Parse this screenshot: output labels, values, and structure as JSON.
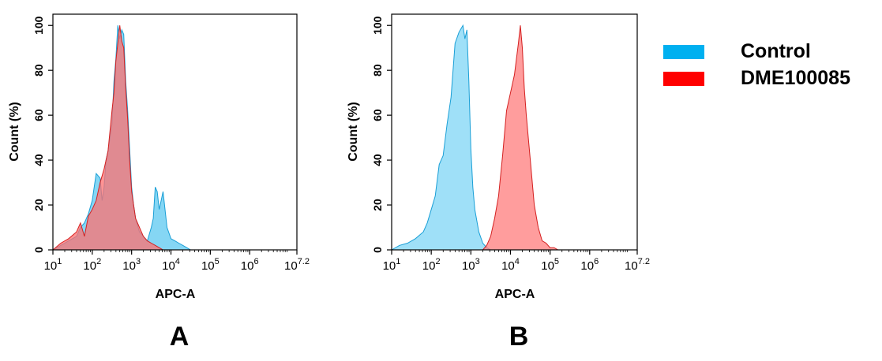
{
  "legend": {
    "items": [
      {
        "label": "Control",
        "color": "#00B0F0"
      },
      {
        "label": "DME100085",
        "color": "#FF0000"
      }
    ]
  },
  "chart_data": [
    {
      "type": "area",
      "panel_label": "A",
      "xlabel": "APC-A",
      "ylabel": "Count  (%)",
      "xscale": "log",
      "xlim": [
        1,
        7.2
      ],
      "ylim": [
        0,
        105
      ],
      "x_tick_labels": [
        {
          "base": "10",
          "exp": "1"
        },
        {
          "base": "10",
          "exp": "2"
        },
        {
          "base": "10",
          "exp": "3"
        },
        {
          "base": "10",
          "exp": "4"
        },
        {
          "base": "10",
          "exp": "5"
        },
        {
          "base": "10",
          "exp": "6"
        },
        {
          "base": "10",
          "exp": "7.2"
        }
      ],
      "y_ticks": [
        "0",
        "20",
        "40",
        "60",
        "80",
        "100"
      ],
      "series": [
        {
          "name": "Control",
          "fill": "#5CC8F0",
          "stroke": "#1A9FD6",
          "log10_x": [
            1.0,
            1.2,
            1.4,
            1.6,
            1.7,
            1.8,
            1.9,
            2.0,
            2.1,
            2.2,
            2.25,
            2.3,
            2.35,
            2.4,
            2.5,
            2.55,
            2.6,
            2.65,
            2.7,
            2.75,
            2.8,
            2.85,
            2.9,
            2.95,
            3.0,
            3.05,
            3.1,
            3.2,
            3.3,
            3.4,
            3.5,
            3.55,
            3.6,
            3.65,
            3.7,
            3.75,
            3.8,
            3.9,
            4.0,
            4.1,
            4.2,
            4.3,
            4.4,
            4.5,
            4.6
          ],
          "y": [
            0,
            2,
            4,
            6,
            10,
            12,
            16,
            22,
            34,
            32,
            22,
            28,
            40,
            44,
            56,
            75,
            85,
            100,
            94,
            98,
            96,
            75,
            62,
            45,
            28,
            20,
            14,
            8,
            6,
            4,
            10,
            14,
            28,
            26,
            18,
            22,
            26,
            10,
            5,
            4,
            3,
            2,
            1,
            0,
            0
          ]
        },
        {
          "name": "DME100085",
          "fill": "#FF7070",
          "stroke": "#D42020",
          "log10_x": [
            1.0,
            1.2,
            1.4,
            1.6,
            1.7,
            1.8,
            1.9,
            2.0,
            2.1,
            2.2,
            2.3,
            2.35,
            2.4,
            2.5,
            2.55,
            2.6,
            2.65,
            2.7,
            2.75,
            2.8,
            2.85,
            2.9,
            2.95,
            3.0,
            3.05,
            3.1,
            3.2,
            3.3,
            3.4,
            3.5,
            3.6,
            3.7,
            3.8,
            3.9,
            4.0
          ],
          "y": [
            0,
            3,
            5,
            8,
            12,
            6,
            15,
            18,
            22,
            30,
            36,
            40,
            44,
            62,
            70,
            84,
            92,
            100,
            93,
            90,
            72,
            58,
            40,
            26,
            20,
            14,
            10,
            6,
            4,
            3,
            2,
            1,
            0,
            0,
            0
          ]
        }
      ]
    },
    {
      "type": "area",
      "panel_label": "B",
      "xlabel": "APC-A",
      "ylabel": "Count  (%)",
      "xscale": "log",
      "xlim": [
        1,
        7.2
      ],
      "ylim": [
        0,
        105
      ],
      "x_tick_labels": [
        {
          "base": "10",
          "exp": "1"
        },
        {
          "base": "10",
          "exp": "2"
        },
        {
          "base": "10",
          "exp": "3"
        },
        {
          "base": "10",
          "exp": "4"
        },
        {
          "base": "10",
          "exp": "5"
        },
        {
          "base": "10",
          "exp": "6"
        },
        {
          "base": "10",
          "exp": "7.2"
        }
      ],
      "y_ticks": [
        "0",
        "20",
        "40",
        "60",
        "80",
        "100"
      ],
      "series": [
        {
          "name": "Control",
          "fill": "#7FD6F5",
          "stroke": "#1A9FD6",
          "log10_x": [
            1.0,
            1.2,
            1.4,
            1.6,
            1.8,
            1.9,
            2.0,
            2.1,
            2.2,
            2.3,
            2.4,
            2.5,
            2.6,
            2.7,
            2.8,
            2.85,
            2.9,
            2.95,
            3.0,
            3.05,
            3.1,
            3.2,
            3.3,
            3.4,
            3.5,
            3.6
          ],
          "y": [
            0,
            2,
            3,
            5,
            8,
            12,
            18,
            24,
            38,
            42,
            56,
            68,
            92,
            97,
            100,
            94,
            98,
            75,
            45,
            28,
            18,
            8,
            3,
            1,
            0,
            0
          ]
        },
        {
          "name": "DME100085",
          "fill": "#FF7C7C",
          "stroke": "#D42020",
          "log10_x": [
            3.3,
            3.4,
            3.5,
            3.6,
            3.7,
            3.8,
            3.9,
            4.0,
            4.1,
            4.2,
            4.25,
            4.3,
            4.35,
            4.4,
            4.5,
            4.6,
            4.7,
            4.8,
            4.9,
            5.0,
            5.1,
            5.2,
            5.4,
            5.6
          ],
          "y": [
            0,
            2,
            6,
            14,
            24,
            42,
            62,
            70,
            78,
            92,
            100,
            90,
            72,
            60,
            40,
            20,
            10,
            4,
            3,
            1,
            1,
            0,
            0,
            0
          ]
        }
      ]
    }
  ]
}
